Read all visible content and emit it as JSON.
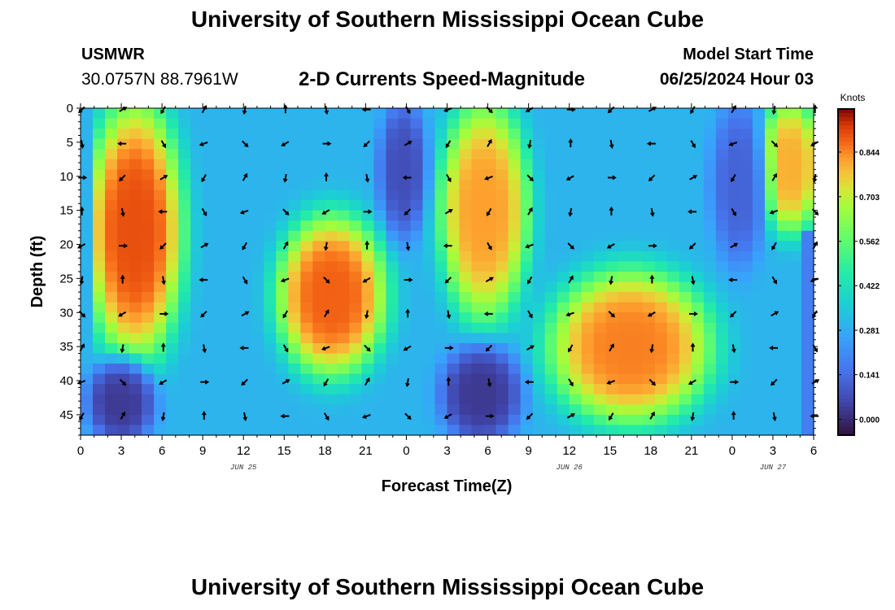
{
  "header": {
    "title": "University of Southern Mississippi Ocean Cube",
    "station": "USMWR",
    "coordinates": "30.0757N  88.7961W",
    "model_start_label": "Model Start Time",
    "model_start_value": "06/25/2024 Hour 03"
  },
  "footer": {
    "title": "University of Southern Mississippi Ocean Cube"
  },
  "chart_data": {
    "type": "heatmap",
    "title": "2-D Currents Speed-Magnitude",
    "xlabel": "Forecast Time(Z)",
    "ylabel": "Depth (ft)",
    "x_tick_labels": [
      "0",
      "3",
      "6",
      "9",
      "12",
      "15",
      "18",
      "21",
      "0",
      "3",
      "6",
      "9",
      "12",
      "15",
      "18",
      "21",
      "0",
      "3",
      "6"
    ],
    "x_day_labels": [
      {
        "label": "JUN 25",
        "hours_since_start": 12
      },
      {
        "label": "JUN 26",
        "hours_since_start": 36
      },
      {
        "label": "JUN 27",
        "hours_since_start": 51
      }
    ],
    "x_range_hours": [
      0,
      54
    ],
    "y_tick_labels": [
      "0",
      "5",
      "10",
      "15",
      "20",
      "25",
      "30",
      "35",
      "40",
      "45"
    ],
    "y_range_ft": [
      0,
      48
    ],
    "colorbar": {
      "title": "Knots",
      "tick_labels": [
        "0.000",
        "0.141",
        "0.281",
        "0.422",
        "0.562",
        "0.703",
        "0.844"
      ],
      "range": [
        -0.05,
        0.98
      ]
    },
    "high_speed_regions": [
      {
        "name": "surface-jet-jun25-early",
        "hours": [
          1,
          7
        ],
        "depth_ft": [
          0,
          36
        ],
        "peak_knots": 0.9
      },
      {
        "name": "deep-core-jun25-evening",
        "hours": [
          15,
          22
        ],
        "depth_ft": [
          17,
          38
        ],
        "peak_knots": 0.88
      },
      {
        "name": "surface-jet-jun26-early",
        "hours": [
          3,
          8.5
        ],
        "depth_ft": [
          0,
          30
        ],
        "peak_knots": 0.82
      },
      {
        "name": "deep-core-jun26-afternoon",
        "hours": [
          11,
          22
        ],
        "depth_ft": [
          25,
          45
        ],
        "peak_knots": 0.85
      },
      {
        "name": "surface-jet-jun27",
        "hours": [
          2.5,
          6
        ],
        "depth_ft": [
          0,
          17
        ],
        "peak_knots": 0.8
      }
    ],
    "low_speed_regions": [
      {
        "name": "calm-bottom-jun25",
        "hours": [
          1,
          5
        ],
        "depth_ft": [
          38,
          48
        ],
        "min_knots": 0.0
      },
      {
        "name": "calm-jun26-midnight",
        "hours": [
          -1.5,
          1
        ],
        "depth_ft": [
          0,
          18
        ],
        "min_knots": 0.05
      },
      {
        "name": "calm-bottom-jun26",
        "hours": [
          3,
          8
        ],
        "depth_ft": [
          36,
          48
        ],
        "min_knots": 0.0
      },
      {
        "name": "calm-jun27-midnight",
        "hours": [
          -1,
          2
        ],
        "depth_ft": [
          0,
          22
        ],
        "min_knots": 0.1
      }
    ]
  }
}
